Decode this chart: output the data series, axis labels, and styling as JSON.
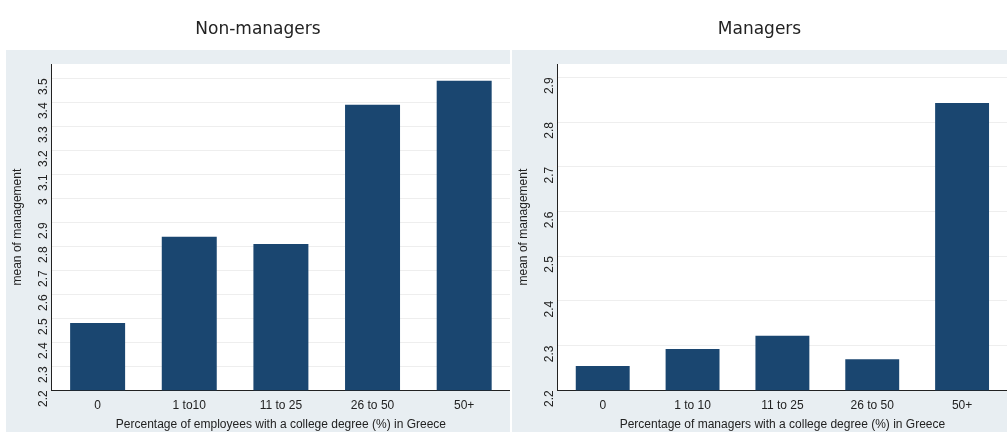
{
  "chart_data": [
    {
      "type": "bar",
      "title": "Non-managers",
      "xlabel": "Percentage of employees with a college degree (%) in Greece",
      "ylabel": "mean of management",
      "categories": [
        "0",
        "1 to10",
        "11 to 25",
        "26 to 50",
        "50+"
      ],
      "values": [
        2.48,
        2.84,
        2.81,
        3.39,
        3.49
      ],
      "color": "#1a4670",
      "ylim": [
        2.2,
        3.56
      ],
      "yticks": [
        2.2,
        2.3,
        2.4,
        2.5,
        2.6,
        2.7,
        2.8,
        2.9,
        3,
        3.1,
        3.2,
        3.3,
        3.4,
        3.5
      ],
      "grid": "y"
    },
    {
      "type": "bar",
      "title": "Managers",
      "xlabel": "Percentage of managers with a college degree (%) in Greece",
      "ylabel": "mean of management",
      "categories": [
        "0",
        "1 to 10",
        "11 to 25",
        "26 to 50",
        "50+"
      ],
      "values": [
        2.254,
        2.292,
        2.322,
        2.269,
        2.843
      ],
      "color": "#1a4670",
      "ylim": [
        2.2,
        2.93
      ],
      "yticks": [
        2.2,
        2.3,
        2.4,
        2.5,
        2.6,
        2.7,
        2.8,
        2.9
      ],
      "grid": "y"
    }
  ]
}
